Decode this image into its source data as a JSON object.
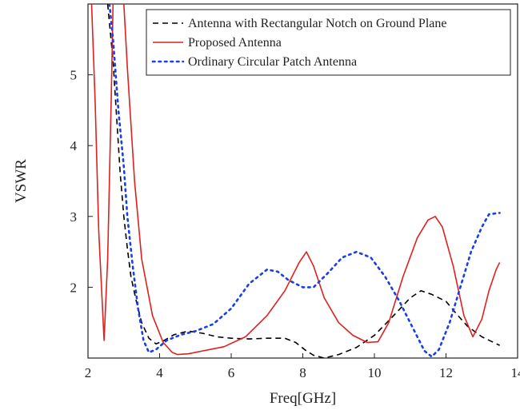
{
  "chart_data": {
    "type": "line",
    "title": "",
    "xlabel": "Freq[GHz]",
    "ylabel": "VSWR",
    "xlim": [
      2,
      14
    ],
    "ylim": [
      1.0,
      6.0
    ],
    "xticks": [
      {
        "value": 2,
        "label": "2"
      },
      {
        "value": 4,
        "label": "4"
      },
      {
        "value": 6,
        "label": "6"
      },
      {
        "value": 8,
        "label": "8"
      },
      {
        "value": 10,
        "label": "10"
      },
      {
        "value": 12,
        "label": "12"
      },
      {
        "value": 14,
        "label": "14"
      }
    ],
    "yticks": [
      {
        "value": 2,
        "label": "2"
      },
      {
        "value": 3,
        "label": "3"
      },
      {
        "value": 4,
        "label": "4"
      },
      {
        "value": 5,
        "label": "5"
      }
    ],
    "grid": false,
    "legend_position": "top-right",
    "series": [
      {
        "name": "Antenna with Rectangular Notch on Ground Plane",
        "color": "#000000",
        "dash": "dashed",
        "points": [
          [
            2.55,
            6.0
          ],
          [
            2.7,
            5.2
          ],
          [
            2.8,
            4.4
          ],
          [
            2.9,
            3.6
          ],
          [
            3.0,
            3.0
          ],
          [
            3.1,
            2.55
          ],
          [
            3.2,
            2.15
          ],
          [
            3.35,
            1.8
          ],
          [
            3.5,
            1.5
          ],
          [
            3.7,
            1.28
          ],
          [
            3.9,
            1.2
          ],
          [
            4.1,
            1.24
          ],
          [
            4.4,
            1.33
          ],
          [
            4.8,
            1.38
          ],
          [
            5.2,
            1.35
          ],
          [
            5.6,
            1.3
          ],
          [
            6.0,
            1.28
          ],
          [
            6.5,
            1.27
          ],
          [
            7.0,
            1.28
          ],
          [
            7.5,
            1.28
          ],
          [
            7.8,
            1.22
          ],
          [
            8.1,
            1.1
          ],
          [
            8.3,
            1.04
          ],
          [
            8.6,
            1.0
          ],
          [
            9.0,
            1.05
          ],
          [
            9.5,
            1.15
          ],
          [
            10.0,
            1.32
          ],
          [
            10.5,
            1.58
          ],
          [
            11.0,
            1.85
          ],
          [
            11.3,
            1.95
          ],
          [
            11.6,
            1.9
          ],
          [
            12.0,
            1.8
          ],
          [
            12.3,
            1.62
          ],
          [
            12.6,
            1.45
          ],
          [
            13.0,
            1.3
          ],
          [
            13.5,
            1.18
          ]
        ]
      },
      {
        "name": "Proposed Antenna",
        "color": "#e02020",
        "dash": "solid",
        "points": [
          [
            2.1,
            6.0
          ],
          [
            2.2,
            4.6
          ],
          [
            2.3,
            2.8
          ],
          [
            2.45,
            1.25
          ],
          [
            2.55,
            2.4
          ],
          [
            2.65,
            4.7
          ],
          [
            2.7,
            6.0
          ],
          [
            3.0,
            6.0
          ],
          [
            3.1,
            5.1
          ],
          [
            3.3,
            3.5
          ],
          [
            3.5,
            2.4
          ],
          [
            3.8,
            1.6
          ],
          [
            4.1,
            1.22
          ],
          [
            4.35,
            1.08
          ],
          [
            4.5,
            1.05
          ],
          [
            4.8,
            1.06
          ],
          [
            5.2,
            1.1
          ],
          [
            5.8,
            1.16
          ],
          [
            6.4,
            1.3
          ],
          [
            7.0,
            1.6
          ],
          [
            7.5,
            1.95
          ],
          [
            7.9,
            2.35
          ],
          [
            8.1,
            2.5
          ],
          [
            8.3,
            2.3
          ],
          [
            8.6,
            1.85
          ],
          [
            9.0,
            1.5
          ],
          [
            9.4,
            1.32
          ],
          [
            9.8,
            1.22
          ],
          [
            10.1,
            1.23
          ],
          [
            10.4,
            1.5
          ],
          [
            10.8,
            2.15
          ],
          [
            11.2,
            2.7
          ],
          [
            11.5,
            2.95
          ],
          [
            11.7,
            3.0
          ],
          [
            11.9,
            2.85
          ],
          [
            12.2,
            2.3
          ],
          [
            12.5,
            1.6
          ],
          [
            12.75,
            1.3
          ],
          [
            13.0,
            1.55
          ],
          [
            13.2,
            1.95
          ],
          [
            13.4,
            2.25
          ],
          [
            13.5,
            2.35
          ]
        ]
      },
      {
        "name": "Ordinary Circular Patch Antenna",
        "color": "#1a3ee8",
        "dash": "dotted",
        "points": [
          [
            2.6,
            6.0
          ],
          [
            2.7,
            5.5
          ],
          [
            2.85,
            4.5
          ],
          [
            3.0,
            3.7
          ],
          [
            3.1,
            3.0
          ],
          [
            3.25,
            2.3
          ],
          [
            3.4,
            1.7
          ],
          [
            3.55,
            1.25
          ],
          [
            3.7,
            1.08
          ],
          [
            3.9,
            1.12
          ],
          [
            4.2,
            1.25
          ],
          [
            4.6,
            1.33
          ],
          [
            5.0,
            1.38
          ],
          [
            5.5,
            1.48
          ],
          [
            6.0,
            1.7
          ],
          [
            6.5,
            2.05
          ],
          [
            7.0,
            2.25
          ],
          [
            7.3,
            2.22
          ],
          [
            7.6,
            2.1
          ],
          [
            8.0,
            2.0
          ],
          [
            8.3,
            2.0
          ],
          [
            8.7,
            2.2
          ],
          [
            9.1,
            2.42
          ],
          [
            9.5,
            2.5
          ],
          [
            9.9,
            2.42
          ],
          [
            10.3,
            2.15
          ],
          [
            10.7,
            1.8
          ],
          [
            11.1,
            1.4
          ],
          [
            11.4,
            1.1
          ],
          [
            11.6,
            1.02
          ],
          [
            11.8,
            1.12
          ],
          [
            12.1,
            1.5
          ],
          [
            12.4,
            2.0
          ],
          [
            12.7,
            2.5
          ],
          [
            13.0,
            2.85
          ],
          [
            13.2,
            3.03
          ],
          [
            13.5,
            3.05
          ]
        ]
      }
    ]
  }
}
